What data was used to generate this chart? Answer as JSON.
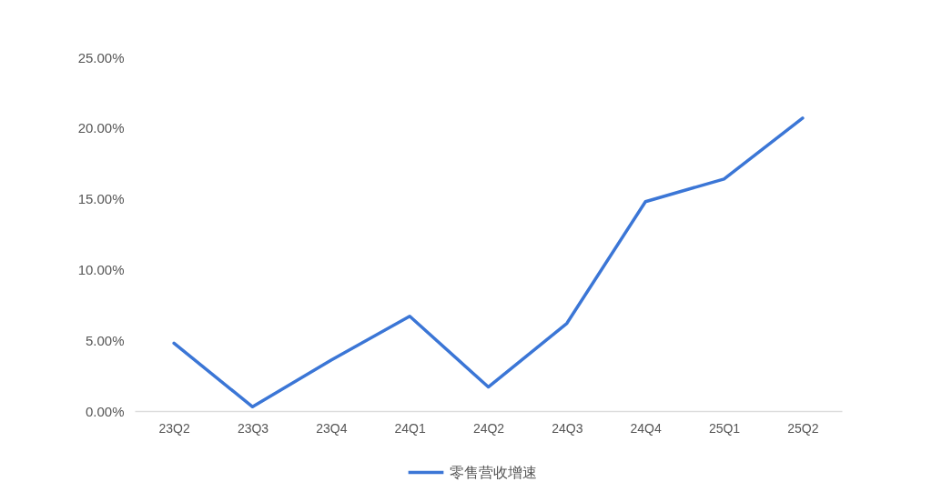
{
  "chart_data": {
    "type": "line",
    "categories": [
      "23Q2",
      "23Q3",
      "23Q4",
      "24Q1",
      "24Q2",
      "24Q3",
      "24Q4",
      "25Q1",
      "25Q2"
    ],
    "series": [
      {
        "name": "零售营收增速",
        "color": "#3b76d6",
        "values": [
          4.8,
          0.3,
          3.6,
          6.7,
          1.7,
          6.2,
          14.8,
          16.4,
          20.7
        ]
      }
    ],
    "ylim": [
      0,
      25
    ],
    "yticks": [
      {
        "value": 0,
        "label": "0.00%"
      },
      {
        "value": 5,
        "label": "5.00%"
      },
      {
        "value": 10,
        "label": "10.00%"
      },
      {
        "value": 15,
        "label": "15.00%"
      },
      {
        "value": 20,
        "label": "20.00%"
      },
      {
        "value": 25,
        "label": "25.00%"
      }
    ],
    "grid": false,
    "legend": "bottom",
    "marker": "none",
    "line_style": "solid"
  }
}
